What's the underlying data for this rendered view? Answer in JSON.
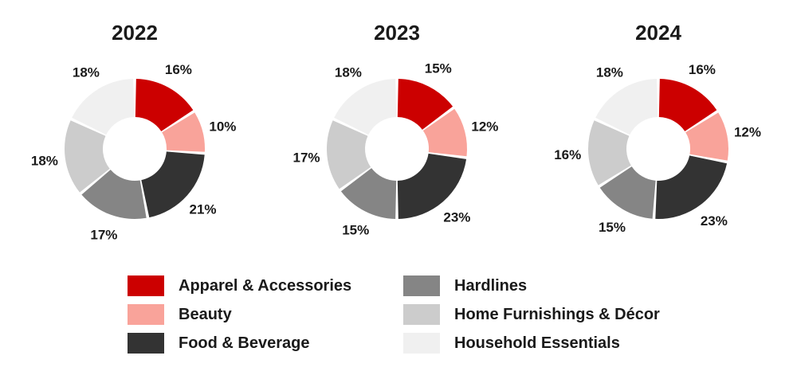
{
  "chart_data": [
    {
      "type": "pie",
      "title": "2022",
      "categories": [
        "Apparel & Accessories",
        "Beauty",
        "Food & Beverage",
        "Hardlines",
        "Home Furnishings & Décor",
        "Household Essentials"
      ],
      "values": [
        16,
        10,
        21,
        17,
        18,
        18
      ],
      "labels": [
        "16%",
        "10%",
        "21%",
        "17%",
        "18%",
        "18%"
      ]
    },
    {
      "type": "pie",
      "title": "2023",
      "categories": [
        "Apparel & Accessories",
        "Beauty",
        "Food & Beverage",
        "Hardlines",
        "Home Furnishings & Décor",
        "Household Essentials"
      ],
      "values": [
        15,
        12,
        23,
        15,
        17,
        18
      ],
      "labels": [
        "15%",
        "12%",
        "23%",
        "15%",
        "17%",
        "18%"
      ]
    },
    {
      "type": "pie",
      "title": "2024",
      "categories": [
        "Apparel & Accessories",
        "Beauty",
        "Food & Beverage",
        "Hardlines",
        "Home Furnishings & Décor",
        "Household Essentials"
      ],
      "values": [
        16,
        12,
        23,
        15,
        16,
        18
      ],
      "labels": [
        "16%",
        "12%",
        "23%",
        "15%",
        "16%",
        "18%"
      ]
    }
  ],
  "legend": {
    "placement": "bottom",
    "items": [
      {
        "label": "Apparel & Accessories",
        "color": "#cc0000"
      },
      {
        "label": "Beauty",
        "color": "#f9a39a"
      },
      {
        "label": "Food & Beverage",
        "color": "#333333"
      },
      {
        "label": "Hardlines",
        "color": "#858585"
      },
      {
        "label": "Home Furnishings & Décor",
        "color": "#cccccc"
      },
      {
        "label": "Household Essentials",
        "color": "#f0f0f0"
      }
    ]
  }
}
